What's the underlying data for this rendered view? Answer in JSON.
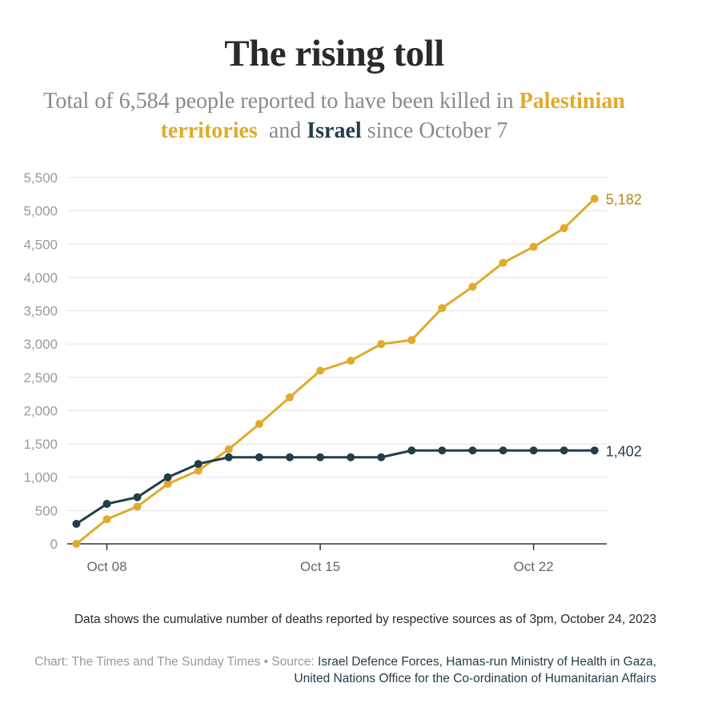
{
  "title": "The rising toll",
  "subtitle": {
    "part1": "Total of 6,584 people reported to have been killed in ",
    "palestinian": "Palestinian territories",
    "part2": "  and ",
    "israel": "Israel",
    "part3": " since October 7"
  },
  "colors": {
    "palestinian": "#e0aa2a",
    "palestinian_label": "#b5870f",
    "israel": "#233d4a",
    "grid": "#e2e2e2",
    "axis": "#333333"
  },
  "chart_data": {
    "type": "line",
    "title": "The rising toll",
    "xlabel": "",
    "ylabel": "",
    "x": [
      7,
      8,
      9,
      10,
      11,
      12,
      13,
      14,
      15,
      16,
      17,
      18,
      19,
      20,
      21,
      22,
      23,
      24
    ],
    "x_ticks": [
      {
        "day": 8,
        "label": "Oct 08"
      },
      {
        "day": 15,
        "label": "Oct 15"
      },
      {
        "day": 22,
        "label": "Oct 22"
      }
    ],
    "xlim": [
      6.7,
      24.4
    ],
    "ylim": [
      0,
      5500
    ],
    "y_ticks": [
      0,
      500,
      1000,
      1500,
      2000,
      2500,
      3000,
      3500,
      4000,
      4500,
      5000,
      5500
    ],
    "y_tick_labels": [
      "0",
      "500",
      "1,000",
      "1,500",
      "2,000",
      "2,500",
      "3,000",
      "3,500",
      "4,000",
      "4,500",
      "5,000",
      "5,500"
    ],
    "grid": true,
    "series": [
      {
        "name": "Palestinian territories",
        "color": "#e0aa2a",
        "values": [
          0,
          370,
          560,
          900,
          1100,
          1420,
          1800,
          2200,
          2600,
          2750,
          3000,
          3060,
          3540,
          3860,
          4220,
          4460,
          4740,
          5182
        ],
        "end_label": "5,182"
      },
      {
        "name": "Israel",
        "color": "#233d4a",
        "values": [
          300,
          600,
          700,
          1000,
          1200,
          1300,
          1300,
          1300,
          1300,
          1300,
          1300,
          1402,
          1402,
          1402,
          1402,
          1402,
          1402,
          1402
        ],
        "end_label": "1,402"
      }
    ]
  },
  "footer": {
    "note": "Data shows the cumulative number of deaths reported by respective sources as of 3pm, October 24, 2023",
    "credit_prefix": "Chart: The Times and The Sunday Times • Source: ",
    "credit_sources": "Israel Defence Forces, Hamas-run Ministry of Health in Gaza, United Nations Office for the Co-ordination of Humanitarian Affairs"
  }
}
